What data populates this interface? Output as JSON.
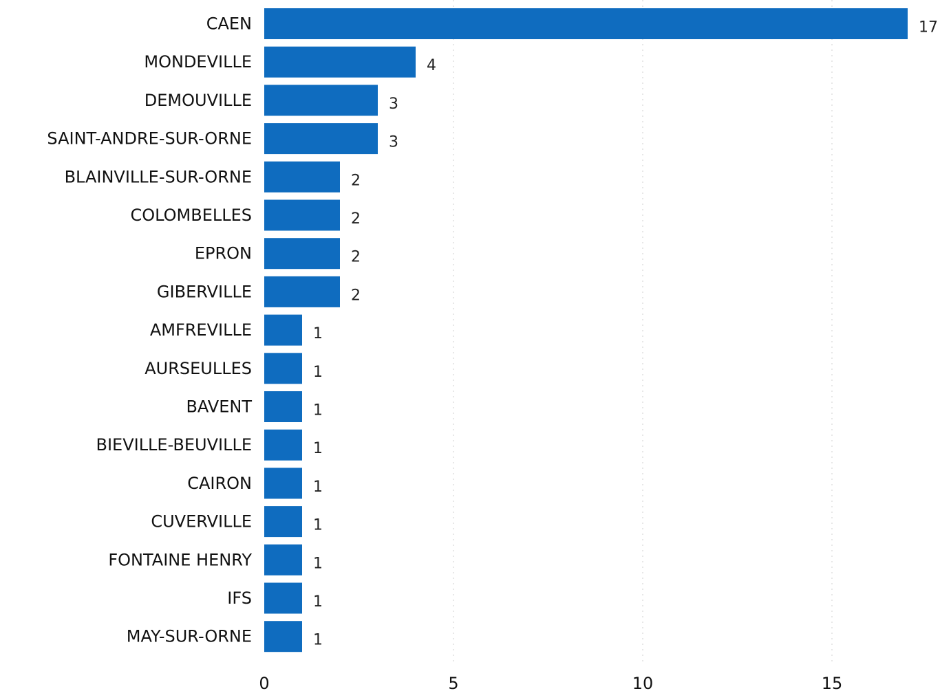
{
  "chart_data": {
    "type": "bar",
    "orientation": "horizontal",
    "categories": [
      "CAEN",
      "MONDEVILLE",
      "DEMOUVILLE",
      "SAINT-ANDRE-SUR-ORNE",
      "BLAINVILLE-SUR-ORNE",
      "COLOMBELLES",
      "EPRON",
      "GIBERVILLE",
      "AMFREVILLE",
      "AURSEULLES",
      "BAVENT",
      "BIEVILLE-BEUVILLE",
      "CAIRON",
      "CUVERVILLE",
      "FONTAINE HENRY",
      "IFS",
      "MAY-SUR-ORNE"
    ],
    "values": [
      17,
      4,
      3,
      3,
      2,
      2,
      2,
      2,
      1,
      1,
      1,
      1,
      1,
      1,
      1,
      1,
      1
    ],
    "xticks": [
      0,
      5,
      10,
      15
    ],
    "xlim": [
      0,
      17
    ],
    "title": "",
    "xlabel": "",
    "ylabel": "",
    "grid": "vertical-dotted",
    "legend": "none",
    "bar_color": "#0f6cbf"
  }
}
